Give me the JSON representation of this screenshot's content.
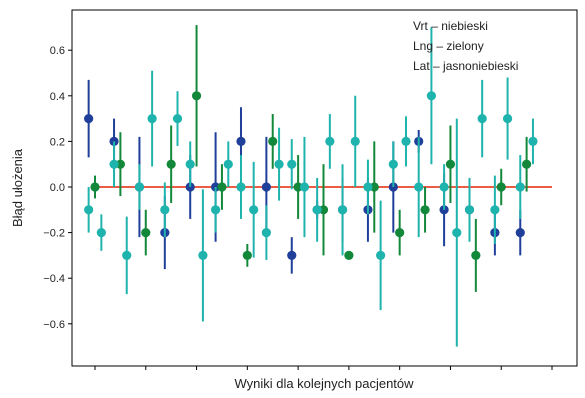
{
  "chart_data": {
    "type": "scatter",
    "xlabel": "Wyniki dla kolejnych pacjentów",
    "ylabel": "Błąd ułożenia",
    "ylim": [
      -0.8,
      0.8
    ],
    "yticks": [
      "0.6",
      "0.4",
      "0.2",
      "0.0",
      "−0.2",
      "−0.4",
      "−0.6"
    ],
    "ytick_values": [
      0.6,
      0.4,
      0.2,
      0.0,
      -0.2,
      -0.4,
      -0.6
    ],
    "xlim": [
      -0.5,
      18.5
    ],
    "xticks": [
      0,
      2,
      4,
      6,
      8,
      10,
      12,
      14,
      16,
      18
    ],
    "grid": false,
    "legend": {
      "placement": "top-right",
      "entries": [
        "Vrt – niebieski",
        "Lng – zielony",
        "Lat – jasnoniebieski"
      ]
    },
    "reference_line": {
      "y": 0.0,
      "color": "#e8452a"
    },
    "colors": {
      "Vrt": "#1f3f9a",
      "Lng": "#13883a",
      "Lat": "#1fb3ad"
    },
    "series": [
      {
        "key": "Vrt",
        "offset": -0.25,
        "values": [
          0.3,
          0.2,
          0.0,
          -0.2,
          0.0,
          0.0,
          0.2,
          0.0,
          -0.3,
          -0.1,
          -0.1,
          -0.1,
          0.0,
          0.2,
          -0.1,
          -0.1,
          -0.2,
          -0.2
        ],
        "err_lower": [
          0.17,
          0.1,
          0.22,
          0.16,
          0.14,
          0.24,
          0.15,
          0.22,
          0.08,
          0.04,
          0.14,
          0.14,
          0.2,
          0.05,
          0.16,
          0.11,
          0.1,
          0.1
        ],
        "err_upper": [
          0.17,
          0.1,
          0.22,
          0.16,
          0.14,
          0.24,
          0.15,
          0.22,
          0.08,
          0.04,
          0.14,
          0.14,
          0.2,
          0.05,
          0.16,
          0.11,
          0.1,
          0.1
        ]
      },
      {
        "key": "Lng",
        "offset": 0.0,
        "values": [
          0.0,
          0.1,
          -0.2,
          0.1,
          0.4,
          0.0,
          -0.3,
          0.2,
          0.0,
          -0.1,
          -0.3,
          0.0,
          -0.2,
          -0.1,
          0.1,
          -0.3,
          0.0,
          0.1
        ],
        "err_lower": [
          0.05,
          0.14,
          0.1,
          0.17,
          0.31,
          0.1,
          0.05,
          0.12,
          0.14,
          0.2,
          0.0,
          0.2,
          0.1,
          0.1,
          0.17,
          0.16,
          0.08,
          0.12
        ],
        "err_upper": [
          0.05,
          0.14,
          0.1,
          0.17,
          0.31,
          0.1,
          0.05,
          0.12,
          0.14,
          0.2,
          0.0,
          0.2,
          0.1,
          0.1,
          0.17,
          0.16,
          0.08,
          0.12
        ]
      },
      {
        "key": "Lat",
        "offset": 0.25,
        "values": [
          -0.2,
          -0.3,
          0.3,
          0.3,
          -0.3,
          0.1,
          -0.1,
          0.1,
          0.0,
          0.2,
          0.2,
          -0.3,
          0.2,
          0.4,
          -0.2,
          0.3,
          0.3,
          0.2
        ],
        "err_lower": [
          0.08,
          0.17,
          0.21,
          0.12,
          0.29,
          0.1,
          0.21,
          0.16,
          0.22,
          0.12,
          0.2,
          0.24,
          0.11,
          0.3,
          0.5,
          0.17,
          0.18,
          0.1
        ],
        "err_upper": [
          0.08,
          0.17,
          0.21,
          0.12,
          0.29,
          0.1,
          0.21,
          0.16,
          0.22,
          0.12,
          0.2,
          0.24,
          0.11,
          0.3,
          0.5,
          0.17,
          0.18,
          0.1
        ]
      },
      {
        "key": "Lat",
        "offset": -0.25,
        "values": [
          -0.1,
          0.1,
          0.0,
          -0.1,
          0.1,
          -0.1,
          0.0,
          -0.2,
          0.1,
          -0.1,
          -0.1,
          0.0,
          0.1,
          0.0,
          0.0,
          -0.1,
          -0.1,
          0.0
        ],
        "err_lower": [
          0.1,
          0.1,
          0.1,
          0.12,
          0.1,
          0.1,
          0.14,
          0.12,
          0.11,
          0.14,
          0.2,
          0.12,
          0.1,
          0.22,
          0.1,
          0.14,
          0.15,
          0.14
        ],
        "err_upper": [
          0.1,
          0.1,
          0.1,
          0.12,
          0.1,
          0.1,
          0.14,
          0.12,
          0.11,
          0.14,
          0.2,
          0.12,
          0.1,
          0.22,
          0.1,
          0.14,
          0.15,
          0.14
        ]
      }
    ]
  }
}
